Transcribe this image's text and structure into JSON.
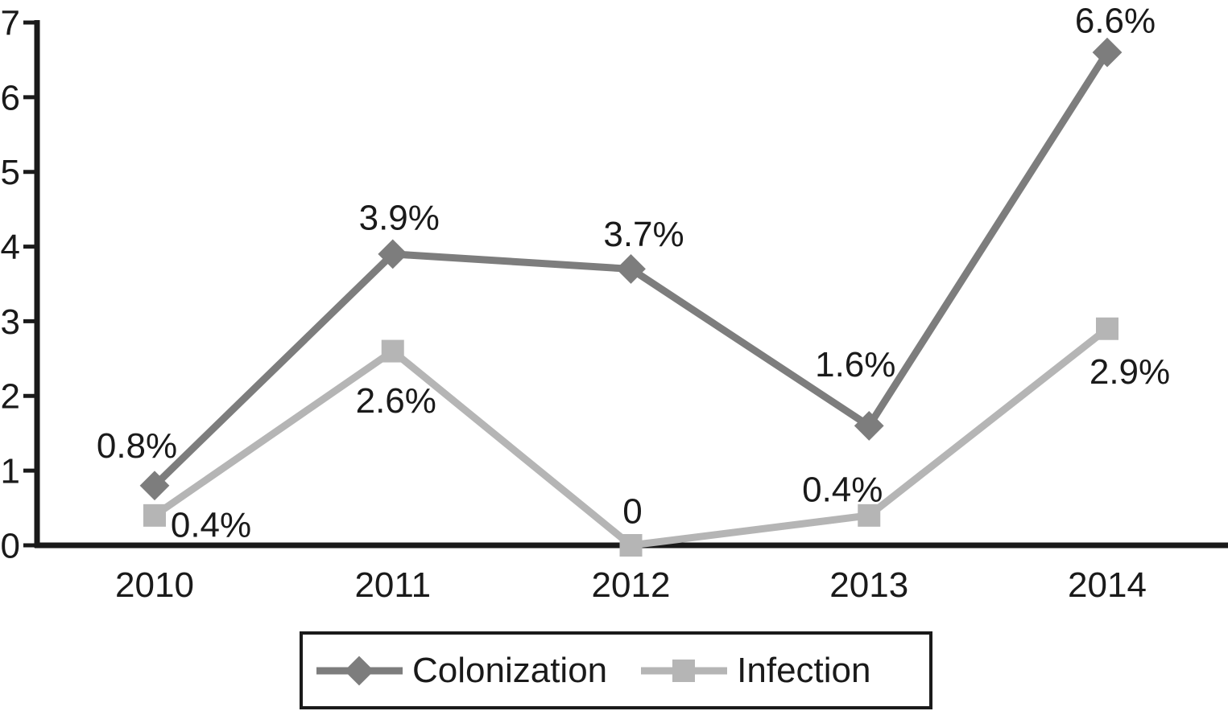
{
  "figure": {
    "background": "#ffffff",
    "text_color": "#1a1a1a"
  },
  "chart_data": {
    "type": "line",
    "title": "",
    "xlabel": "",
    "ylabel": "",
    "categories": [
      "2010",
      "2011",
      "2012",
      "2013",
      "2014"
    ],
    "series": [
      {
        "name": "Colonization",
        "marker": "diamond",
        "color": "#7d7d7d",
        "values": [
          0.8,
          3.9,
          3.7,
          1.6,
          6.6
        ],
        "point_labels": [
          "0.8%",
          "3.9%",
          "3.7%",
          "1.6%",
          "6.6%"
        ]
      },
      {
        "name": "Infection",
        "marker": "square",
        "color": "#b5b5b5",
        "values": [
          0.4,
          2.6,
          0,
          0.4,
          2.9
        ],
        "point_labels": [
          "0.4%",
          "2.6%",
          "0",
          "0.4%",
          "2.9%"
        ]
      }
    ],
    "ylim": [
      0,
      7
    ],
    "yticks": [
      "0",
      "1",
      "2",
      "3",
      "4",
      "5",
      "6",
      "7"
    ],
    "grid": false,
    "legend_position": "bottom",
    "axis_color": "#1a1a1a"
  }
}
